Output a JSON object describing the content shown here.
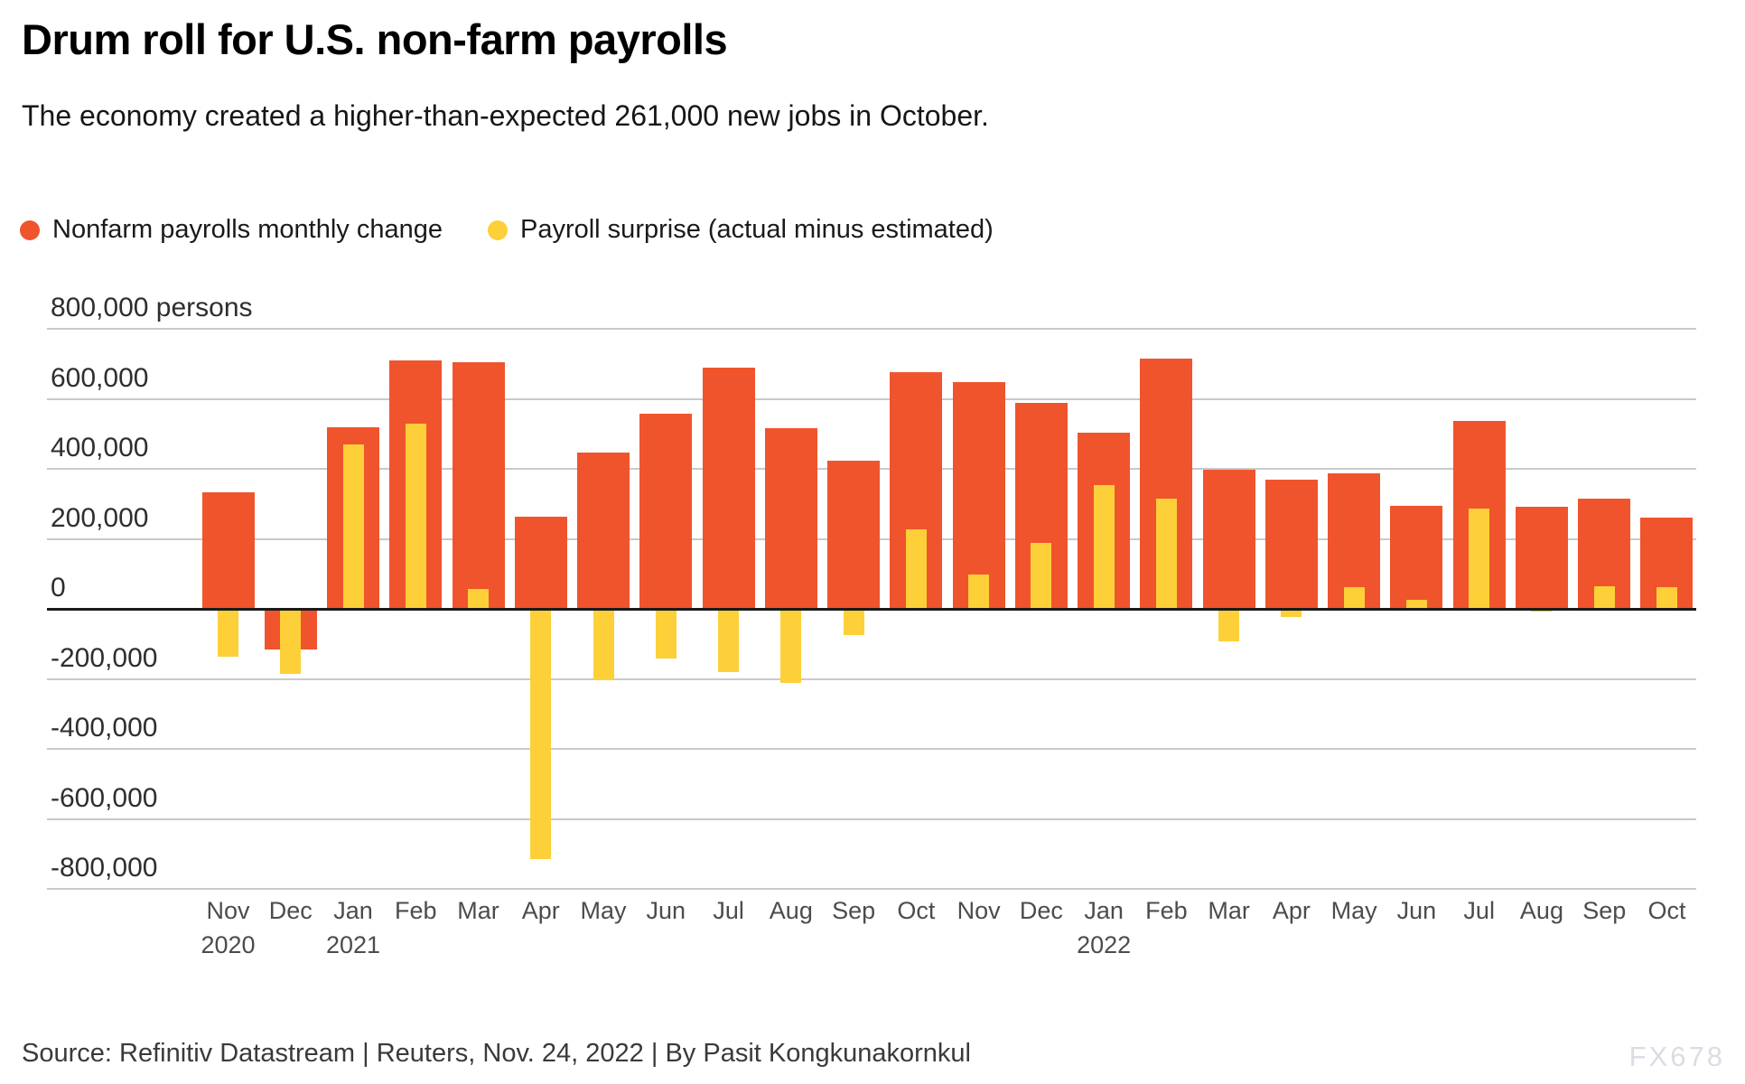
{
  "header": {
    "title": "Drum roll for U.S. non-farm payrolls",
    "subtitle": "The economy created a higher-than-expected 261,000 new jobs in October."
  },
  "legend": [
    {
      "label": "Nonfarm payrolls monthly change",
      "color": "#F0542C"
    },
    {
      "label": "Payroll surprise (actual minus estimated)",
      "color": "#FDD039"
    }
  ],
  "chart_data": {
    "type": "bar",
    "title": "Drum roll for U.S. non-farm payrolls",
    "unit": "persons",
    "ylim": [
      -800000,
      800000
    ],
    "grid": true,
    "legend_position": "top",
    "categories": [
      {
        "month": "Nov",
        "year": "2020"
      },
      {
        "month": "Dec"
      },
      {
        "month": "Jan",
        "year": "2021"
      },
      {
        "month": "Feb"
      },
      {
        "month": "Mar"
      },
      {
        "month": "Apr"
      },
      {
        "month": "May"
      },
      {
        "month": "Jun"
      },
      {
        "month": "Jul"
      },
      {
        "month": "Aug"
      },
      {
        "month": "Sep"
      },
      {
        "month": "Oct"
      },
      {
        "month": "Nov"
      },
      {
        "month": "Dec"
      },
      {
        "month": "Jan",
        "year": "2022"
      },
      {
        "month": "Feb"
      },
      {
        "month": "Mar"
      },
      {
        "month": "Apr"
      },
      {
        "month": "May"
      },
      {
        "month": "Jun"
      },
      {
        "month": "Jul"
      },
      {
        "month": "Aug"
      },
      {
        "month": "Sep"
      },
      {
        "month": "Oct"
      }
    ],
    "series": [
      {
        "name": "Nonfarm payrolls monthly change",
        "color": "#F0542C",
        "values": [
          333000,
          -115000,
          520000,
          710000,
          704000,
          263000,
          447000,
          557000,
          689000,
          517000,
          424000,
          677000,
          647000,
          588000,
          504000,
          714000,
          398000,
          368000,
          386000,
          293000,
          537000,
          292000,
          315000,
          261000
        ]
      },
      {
        "name": "Payroll surprise (actual minus estimated)",
        "color": "#FDD039",
        "values": [
          -136000,
          -186000,
          470000,
          528000,
          57000,
          -715000,
          -203000,
          -143000,
          -181000,
          -211000,
          -76000,
          227000,
          97000,
          188000,
          354000,
          314000,
          -92000,
          -23000,
          61000,
          25000,
          287000,
          -8000,
          65000,
          61000
        ]
      }
    ],
    "yticks": [
      {
        "label": "800,000 persons",
        "value": 800000
      },
      {
        "label": "600,000",
        "value": 600000
      },
      {
        "label": "400,000",
        "value": 400000
      },
      {
        "label": "200,000",
        "value": 200000
      },
      {
        "label": "0",
        "value": 0
      },
      {
        "label": "-200,000",
        "value": -200000
      },
      {
        "label": "-400,000",
        "value": -400000
      },
      {
        "label": "-600,000",
        "value": -600000
      },
      {
        "label": "-800,000",
        "value": -800000
      }
    ]
  },
  "footer": {
    "source": "Source: Refinitiv Datastream  |  Reuters, Nov. 24, 2022  |  By Pasit Kongkunakornkul",
    "watermark": "FX678"
  }
}
